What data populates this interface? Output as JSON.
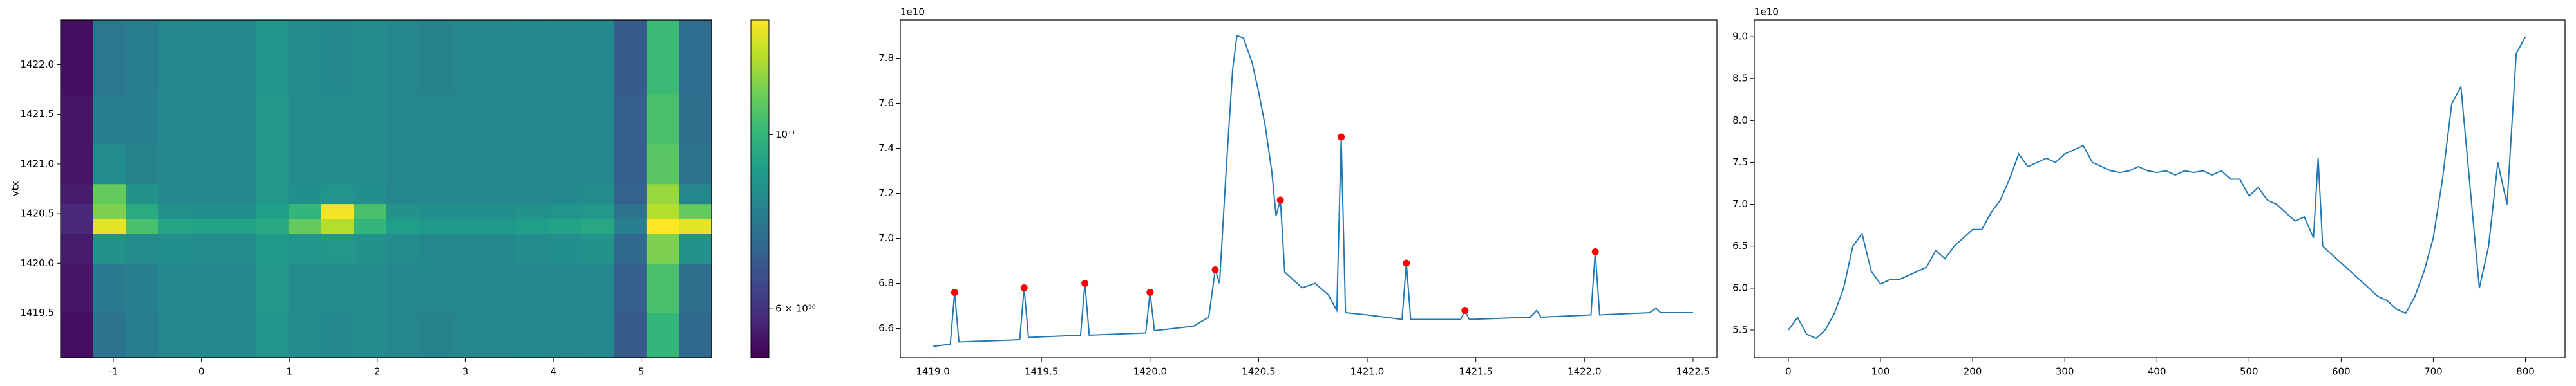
{
  "chart_data": [
    {
      "type": "heatmap",
      "ylabel": "vtx",
      "colormap": "viridis",
      "x_bins": [
        -1.6,
        -1.23,
        -0.86,
        -0.49,
        -0.12,
        0.25,
        0.62,
        0.99,
        1.36,
        1.73,
        2.1,
        2.47,
        2.84,
        3.21,
        3.58,
        3.95,
        4.32,
        4.69,
        5.06,
        5.43,
        5.8
      ],
      "y_bins": [
        1419.05,
        1419.5,
        1420.0,
        1420.3,
        1420.45,
        1420.6,
        1420.8,
        1421.2,
        1421.7,
        1422.45
      ],
      "z": [
        [
          54000000000.0,
          76000000000.0,
          79000000000.0,
          82000000000.0,
          83000000000.0,
          83000000000.0,
          87000000000.0,
          84000000000.0,
          83000000000.0,
          84000000000.0,
          82000000000.0,
          81000000000.0,
          82000000000.0,
          82000000000.0,
          83000000000.0,
          82000000000.0,
          83000000000.0,
          69000000000.0,
          100000000000.0,
          73000000000.0
        ],
        [
          55000000000.0,
          78000000000.0,
          80000000000.0,
          83000000000.0,
          83000000000.0,
          83000000000.0,
          88000000000.0,
          84000000000.0,
          84000000000.0,
          84000000000.0,
          82000000000.0,
          82000000000.0,
          82000000000.0,
          82000000000.0,
          83000000000.0,
          83000000000.0,
          83000000000.0,
          70000000000.0,
          105000000000.0,
          75000000000.0
        ],
        [
          56000000000.0,
          86000000000.0,
          84000000000.0,
          85000000000.0,
          84000000000.0,
          84000000000.0,
          89000000000.0,
          87000000000.0,
          88000000000.0,
          86000000000.0,
          84000000000.0,
          83000000000.0,
          83000000000.0,
          83000000000.0,
          84000000000.0,
          85000000000.0,
          86000000000.0,
          73000000000.0,
          115000000000.0,
          86000000000.0
        ],
        [
          58000000000.0,
          135000000000.0,
          105000000000.0,
          93000000000.0,
          92000000000.0,
          92000000000.0,
          94000000000.0,
          110000000000.0,
          125000000000.0,
          100000000000.0,
          90000000000.0,
          89000000000.0,
          89000000000.0,
          89000000000.0,
          90000000000.0,
          92000000000.0,
          94000000000.0,
          80000000000.0,
          140000000000.0,
          135000000000.0
        ],
        [
          58000000000.0,
          115000000000.0,
          95000000000.0,
          86000000000.0,
          85000000000.0,
          85000000000.0,
          90000000000.0,
          100000000000.0,
          138000000000.0,
          105000000000.0,
          86000000000.0,
          85000000000.0,
          85000000000.0,
          85000000000.0,
          86000000000.0,
          87000000000.0,
          88000000000.0,
          76000000000.0,
          125000000000.0,
          110000000000.0
        ],
        [
          56000000000.0,
          110000000000.0,
          86000000000.0,
          83000000000.0,
          83000000000.0,
          83000000000.0,
          88000000000.0,
          85000000000.0,
          87000000000.0,
          85000000000.0,
          82000000000.0,
          82000000000.0,
          82000000000.0,
          82000000000.0,
          83000000000.0,
          83000000000.0,
          84000000000.0,
          71000000000.0,
          120000000000.0,
          82000000000.0
        ],
        [
          55000000000.0,
          84000000000.0,
          81000000000.0,
          83000000000.0,
          83000000000.0,
          83000000000.0,
          88000000000.0,
          84000000000.0,
          84000000000.0,
          84000000000.0,
          82000000000.0,
          82000000000.0,
          82000000000.0,
          82000000000.0,
          83000000000.0,
          83000000000.0,
          83000000000.0,
          70000000000.0,
          108000000000.0,
          76000000000.0
        ],
        [
          55000000000.0,
          79000000000.0,
          80000000000.0,
          83000000000.0,
          83000000000.0,
          83000000000.0,
          88000000000.0,
          84000000000.0,
          84000000000.0,
          84000000000.0,
          82000000000.0,
          82000000000.0,
          82000000000.0,
          82000000000.0,
          83000000000.0,
          83000000000.0,
          83000000000.0,
          70000000000.0,
          105000000000.0,
          75000000000.0
        ],
        [
          54000000000.0,
          77000000000.0,
          79000000000.0,
          82000000000.0,
          83000000000.0,
          83000000000.0,
          87000000000.0,
          84000000000.0,
          83000000000.0,
          84000000000.0,
          82000000000.0,
          81000000000.0,
          82000000000.0,
          82000000000.0,
          83000000000.0,
          82000000000.0,
          83000000000.0,
          69000000000.0,
          102000000000.0,
          74000000000.0
        ]
      ],
      "xlim": [
        -1.6,
        5.8
      ],
      "ylim": [
        1419.05,
        1422.45
      ],
      "xticks": [
        -1,
        0,
        1,
        2,
        3,
        4,
        5
      ],
      "yticks": [
        1419.5,
        {
          "value": 1420,
          "label": "1420.0"
        },
        1420.5,
        {
          "value": 1421,
          "label": "1421.0"
        },
        1421.5,
        {
          "value": 1422,
          "label": "1422.0"
        }
      ],
      "colorbar": {
        "scale": "log",
        "clim": [
          52000000000.0,
          140000000000.0
        ],
        "ticks": [
          {
            "value": 100000000000.0,
            "label": "10¹¹"
          },
          {
            "value": 60000000000.0,
            "label": "6 × 10¹⁰"
          }
        ]
      }
    },
    {
      "type": "line",
      "y_offset_text": "1e10",
      "series": [
        {
          "color": "#1f77b4",
          "marker": false,
          "x": [
            1419.0,
            1419.08,
            1419.1,
            1419.12,
            1419.4,
            1419.42,
            1419.44,
            1419.68,
            1419.7,
            1419.72,
            1419.98,
            1420.0,
            1420.02,
            1420.2,
            1420.27,
            1420.3,
            1420.32,
            1420.35,
            1420.38,
            1420.4,
            1420.43,
            1420.47,
            1420.5,
            1420.53,
            1420.56,
            1420.58,
            1420.6,
            1420.62,
            1420.7,
            1420.76,
            1420.82,
            1420.86,
            1420.88,
            1420.9,
            1421.0,
            1421.16,
            1421.18,
            1421.2,
            1421.43,
            1421.45,
            1421.47,
            1421.75,
            1421.78,
            1421.8,
            1422.03,
            1422.05,
            1422.07,
            1422.3,
            1422.33,
            1422.35,
            1422.5
          ],
          "values": [
            6.52,
            6.53,
            6.76,
            6.54,
            6.55,
            6.78,
            6.56,
            6.57,
            6.8,
            6.57,
            6.58,
            6.76,
            6.59,
            6.61,
            6.65,
            6.86,
            6.8,
            7.3,
            7.75,
            7.9,
            7.89,
            7.78,
            7.65,
            7.5,
            7.3,
            7.1,
            7.17,
            6.85,
            6.78,
            6.8,
            6.75,
            6.68,
            7.45,
            6.67,
            6.66,
            6.64,
            6.89,
            6.64,
            6.64,
            6.68,
            6.64,
            6.65,
            6.68,
            6.65,
            6.66,
            6.94,
            6.66,
            6.67,
            6.69,
            6.67,
            6.67
          ]
        },
        {
          "color": "#ff0000",
          "marker": true,
          "x": [
            1419.1,
            1419.42,
            1419.7,
            1420.0,
            1420.3,
            1420.6,
            1420.88,
            1421.18,
            1421.45,
            1422.05
          ],
          "values": [
            6.76,
            6.78,
            6.8,
            6.76,
            6.86,
            7.17,
            7.45,
            6.89,
            6.68,
            6.94
          ]
        }
      ],
      "xlim": [
        1418.85,
        1422.61
      ],
      "ylim": [
        6.47,
        7.97
      ],
      "xticks": [
        {
          "value": 1419,
          "label": "1419.0"
        },
        1419.5,
        {
          "value": 1420,
          "label": "1420.0"
        },
        1420.5,
        {
          "value": 1421,
          "label": "1421.0"
        },
        1421.5,
        {
          "value": 1422,
          "label": "1422.0"
        },
        1422.5
      ],
      "yticks": [
        6.6,
        6.8,
        {
          "value": 7,
          "label": "7.0"
        },
        7.2,
        7.4,
        7.6,
        7.8
      ]
    },
    {
      "type": "line",
      "y_offset_text": "1e10",
      "series": [
        {
          "color": "#1f77b4",
          "marker": false,
          "x": [
            0,
            10,
            20,
            30,
            40,
            50,
            60,
            70,
            80,
            90,
            100,
            110,
            120,
            130,
            140,
            150,
            160,
            170,
            180,
            190,
            200,
            210,
            220,
            230,
            240,
            250,
            260,
            270,
            280,
            290,
            300,
            310,
            320,
            330,
            340,
            350,
            360,
            370,
            380,
            390,
            400,
            410,
            420,
            430,
            440,
            450,
            460,
            470,
            480,
            490,
            500,
            510,
            520,
            530,
            540,
            550,
            560,
            570,
            575,
            580,
            590,
            600,
            610,
            620,
            630,
            640,
            650,
            660,
            670,
            680,
            690,
            700,
            710,
            720,
            730,
            740,
            750,
            760,
            770,
            780,
            790,
            800
          ],
          "values": [
            5.5,
            5.65,
            5.45,
            5.4,
            5.5,
            5.7,
            6.0,
            6.5,
            6.65,
            6.2,
            6.05,
            6.1,
            6.1,
            6.15,
            6.2,
            6.25,
            6.45,
            6.35,
            6.5,
            6.6,
            6.7,
            6.7,
            6.9,
            7.05,
            7.3,
            7.6,
            7.45,
            7.5,
            7.55,
            7.5,
            7.6,
            7.65,
            7.7,
            7.5,
            7.45,
            7.4,
            7.38,
            7.4,
            7.45,
            7.4,
            7.38,
            7.4,
            7.35,
            7.4,
            7.38,
            7.4,
            7.35,
            7.4,
            7.3,
            7.3,
            7.1,
            7.2,
            7.05,
            7.0,
            6.9,
            6.8,
            6.85,
            6.6,
            7.55,
            6.5,
            6.4,
            6.3,
            6.2,
            6.1,
            6.0,
            5.9,
            5.85,
            5.75,
            5.7,
            5.9,
            6.2,
            6.6,
            7.3,
            8.2,
            8.4,
            7.2,
            6.0,
            6.5,
            7.5,
            7.0,
            8.8,
            9.0
          ]
        }
      ],
      "xlim": [
        -37,
        843
      ],
      "ylim": [
        5.17,
        9.2
      ],
      "xticks": [
        0,
        100,
        200,
        300,
        400,
        500,
        600,
        700,
        800
      ],
      "yticks": [
        5.5,
        {
          "value": 6,
          "label": "6.0"
        },
        6.5,
        {
          "value": 7,
          "label": "7.0"
        },
        7.5,
        {
          "value": 8,
          "label": "8.0"
        },
        8.5,
        {
          "value": 9,
          "label": "9.0"
        }
      ]
    }
  ]
}
